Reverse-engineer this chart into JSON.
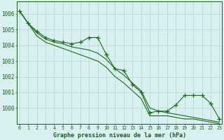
{
  "xlabel": "Graphe pression niveau de la mer (hPa)",
  "x_values": [
    0,
    1,
    2,
    3,
    4,
    5,
    6,
    7,
    8,
    9,
    10,
    11,
    12,
    13,
    14,
    15,
    16,
    17,
    18,
    19,
    20,
    21,
    22,
    23
  ],
  "series_jagged": [
    1006.2,
    1005.4,
    1004.9,
    1004.5,
    1004.3,
    1004.2,
    1004.1,
    1004.2,
    1004.5,
    1004.5,
    1003.4,
    1002.5,
    1002.4,
    1001.5,
    1001.0,
    999.7,
    999.8,
    999.8,
    1000.2,
    1000.8,
    1000.8,
    1000.8,
    1000.3,
    999.3
  ],
  "series_line1": [
    1006.2,
    1005.4,
    1004.8,
    1004.4,
    1004.2,
    1004.1,
    1003.9,
    1003.8,
    1003.7,
    1003.5,
    1003.1,
    1002.5,
    1002.1,
    1001.6,
    1001.1,
    1000.0,
    999.8,
    999.7,
    999.6,
    999.5,
    999.4,
    999.3,
    999.2,
    999.1
  ],
  "series_line2": [
    1006.2,
    1005.4,
    1004.6,
    1004.2,
    1004.0,
    1003.8,
    1003.6,
    1003.4,
    1003.2,
    1003.0,
    1002.6,
    1002.0,
    1001.6,
    1001.1,
    1000.6,
    999.5,
    999.5,
    999.5,
    999.4,
    999.3,
    999.3,
    999.2,
    999.1,
    999.0
  ],
  "line_color": "#1a6b1a",
  "bg_color": "#d8f0f0",
  "grid_color": "#b8d4d4",
  "text_color": "#1a5c1a",
  "ylim": [
    999.0,
    1006.8
  ],
  "yticks": [
    1000,
    1001,
    1002,
    1003,
    1004,
    1005,
    1006
  ],
  "marker": "+",
  "marker_size": 4.0,
  "linewidth": 0.8
}
